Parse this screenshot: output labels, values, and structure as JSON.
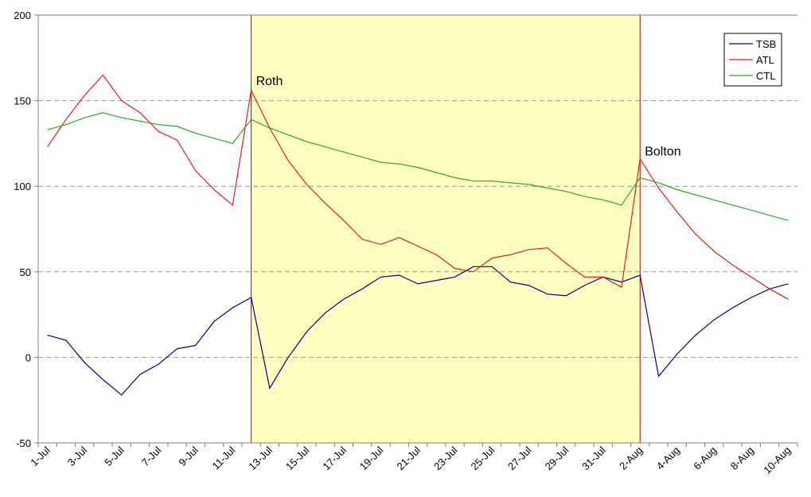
{
  "chart_data": {
    "type": "line",
    "y_axis": {
      "ylim": [
        -50,
        200
      ],
      "ticks": [
        -50,
        0,
        50,
        100,
        150,
        200
      ]
    },
    "x_tick_labels": [
      "1-Jul",
      "3-Jul",
      "5-Jul",
      "7-Jul",
      "9-Jul",
      "11-Jul",
      "13-Jul",
      "15-Jul",
      "17-Jul",
      "19-Jul",
      "21-Jul",
      "23-Jul",
      "25-Jul",
      "27-Jul",
      "29-Jul",
      "31-Jul",
      "2-Aug",
      "4-Aug",
      "6-Aug",
      "8-Aug",
      "10-Aug"
    ],
    "x": [
      "1-Jul",
      "2-Jul",
      "3-Jul",
      "4-Jul",
      "5-Jul",
      "6-Jul",
      "7-Jul",
      "8-Jul",
      "9-Jul",
      "10-Jul",
      "11-Jul",
      "12-Jul",
      "13-Jul",
      "14-Jul",
      "15-Jul",
      "16-Jul",
      "17-Jul",
      "18-Jul",
      "19-Jul",
      "20-Jul",
      "21-Jul",
      "22-Jul",
      "23-Jul",
      "24-Jul",
      "25-Jul",
      "26-Jul",
      "27-Jul",
      "28-Jul",
      "29-Jul",
      "30-Jul",
      "31-Jul",
      "1-Aug",
      "2-Aug",
      "3-Aug",
      "4-Aug",
      "5-Aug",
      "6-Aug",
      "7-Aug",
      "8-Aug",
      "9-Aug",
      "10-Aug"
    ],
    "series": [
      {
        "name": "TSB",
        "color": "#00008b",
        "values": [
          13,
          10,
          -3,
          -13,
          -22,
          -10,
          -4,
          5,
          7,
          21,
          29,
          35,
          -18,
          0,
          15,
          26,
          34,
          40,
          47,
          48,
          43,
          45,
          47,
          53,
          53,
          44,
          42,
          37,
          36,
          42,
          47,
          44,
          48,
          -11,
          2,
          13,
          22,
          29,
          35,
          40,
          43
        ]
      },
      {
        "name": "ATL",
        "color": "#e8191c",
        "values": [
          123,
          139,
          153,
          165,
          150,
          143,
          132,
          127,
          109,
          98,
          89,
          156,
          134,
          115,
          101,
          90,
          80,
          69,
          66,
          70,
          65,
          60,
          52,
          50,
          58,
          60,
          63,
          64,
          55,
          47,
          47,
          41,
          116,
          99,
          85,
          72,
          62,
          54,
          47,
          40,
          34
        ]
      },
      {
        "name": "CTL",
        "color": "#2ca82c",
        "values": [
          133,
          136,
          140,
          143,
          140,
          138,
          136,
          135,
          131,
          128,
          125,
          139,
          134,
          130,
          126,
          123,
          120,
          117,
          114,
          113,
          111,
          108,
          105,
          103,
          103,
          102,
          101,
          99,
          97,
          94,
          92,
          89,
          105,
          102,
          98,
          95,
          92,
          89,
          86,
          83,
          80
        ]
      }
    ],
    "highlight": {
      "start": "12-Jul",
      "end": "2-Aug",
      "fill": "#ffffc0",
      "edge_color": "#c00000"
    },
    "annotations": [
      {
        "text": "Roth",
        "at": "12-Jul",
        "y": 159
      },
      {
        "text": "Bolton",
        "at": "2-Aug",
        "y": 118
      }
    ],
    "grid": {
      "horizontal": "dashed",
      "vertical": false
    },
    "legend": {
      "position": "top-right"
    },
    "axis_color": "#808080",
    "gridline_color": "#999999"
  }
}
